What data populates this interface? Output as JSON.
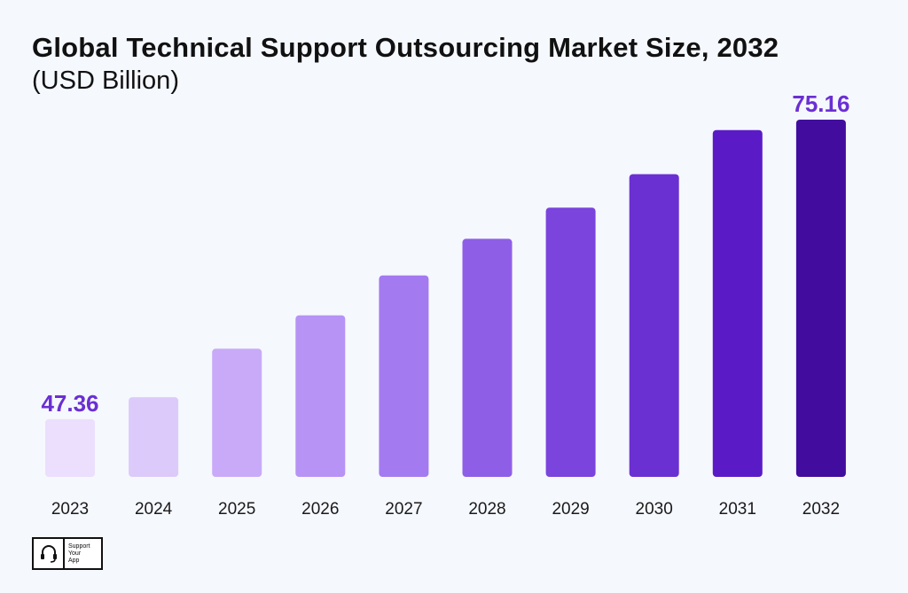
{
  "chart_data": {
    "type": "bar",
    "title": "Global Technical Support Outsourcing Market Size, 2032",
    "subtitle": "(USD Billion)",
    "categories": [
      "2023",
      "2024",
      "2025",
      "2026",
      "2027",
      "2028",
      "2029",
      "2030",
      "2031",
      "2032"
    ],
    "values": [
      47.36,
      49.4,
      53.9,
      57.0,
      60.7,
      64.1,
      67.0,
      70.1,
      74.2,
      75.16
    ],
    "data_labels": {
      "2023": "47.36",
      "2032": "75.16"
    },
    "colors": [
      "#ebdffd",
      "#dccafb",
      "#c8aaf8",
      "#b793f5",
      "#a47af0",
      "#8f5ee7",
      "#7b44dc",
      "#6a30d1",
      "#5a1bc7",
      "#420d9e"
    ],
    "label_color": "#6a2fd3",
    "baseline": 42,
    "grid": false,
    "legend": false
  },
  "logo": {
    "line1": "Support",
    "line2": "Your",
    "line3": "App",
    "icon": "headset-icon"
  }
}
